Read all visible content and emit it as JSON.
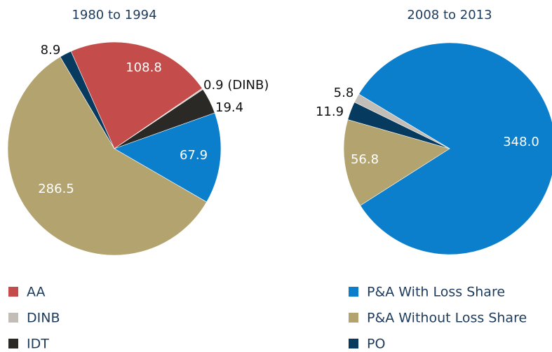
{
  "chart_data": [
    {
      "type": "pie",
      "title": "1980 to 1994",
      "categories": [
        "AA",
        "DINB",
        "IDT",
        "P&A With Loss Share",
        "P&A Without Loss Share",
        "PO"
      ],
      "values": [
        108.8,
        0.9,
        19.4,
        67.9,
        286.5,
        8.9
      ],
      "value_labels": [
        "108.8",
        "0.9 (DINB)",
        "19.4",
        "67.9",
        "286.5",
        "8.9"
      ],
      "colors": [
        "#c44d4b",
        "#c2bdb7",
        "#2b2926",
        "#0b7fcb",
        "#b3a36f",
        "#063a5e"
      ]
    },
    {
      "type": "pie",
      "title": "2008 to 2013",
      "categories": [
        "P&A With Loss Share",
        "P&A Without Loss Share",
        "PO",
        "DINB"
      ],
      "values": [
        348,
        56.8,
        11.9,
        5.8
      ],
      "value_labels": [
        "348.0",
        "56.8",
        "11.9",
        "5.8"
      ],
      "colors": [
        "#0b7fcb",
        "#b3a36f",
        "#063a5e",
        "#c2bdb7"
      ]
    }
  ]
}
